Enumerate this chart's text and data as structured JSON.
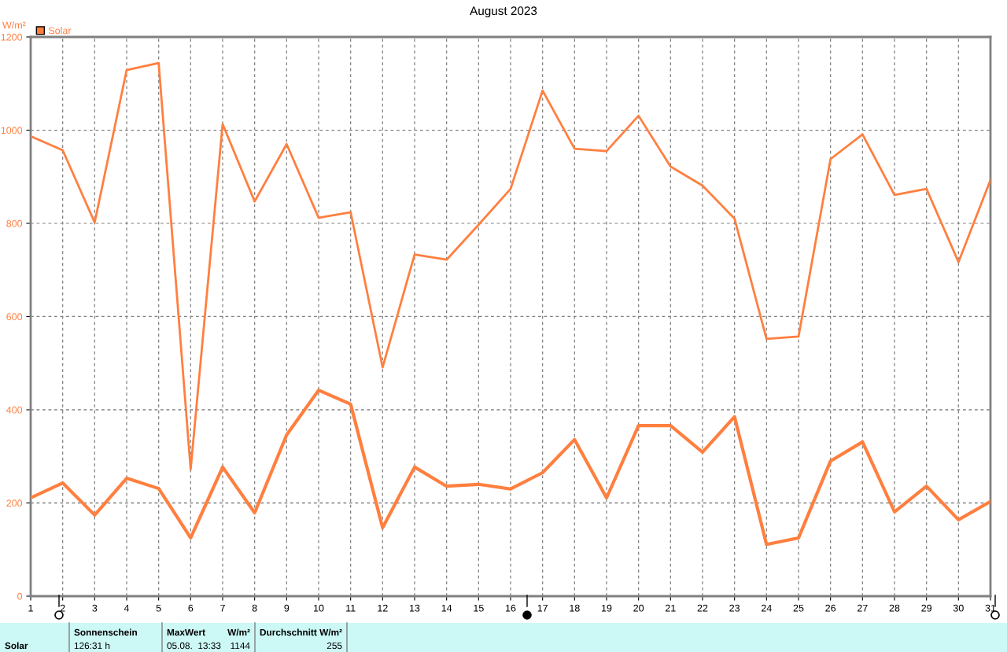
{
  "chart_data": {
    "type": "line",
    "title": "August 2023",
    "ylabel": "W/m²",
    "x": [
      1,
      2,
      3,
      4,
      5,
      6,
      7,
      8,
      9,
      10,
      11,
      12,
      13,
      14,
      15,
      16,
      17,
      18,
      19,
      20,
      21,
      22,
      23,
      24,
      25,
      26,
      27,
      28,
      29,
      30,
      31
    ],
    "series": [
      {
        "name": "Solar",
        "color": "#ff7f3f",
        "values": [
          987,
          957,
          802,
          1129,
          1144,
          272,
          1013,
          847,
          970,
          812,
          824,
          491,
          733,
          722,
          797,
          874,
          1085,
          960,
          955,
          1031,
          922,
          881,
          810,
          552,
          557,
          938,
          991,
          861,
          874,
          717,
          893
        ]
      },
      {
        "color": "#ff7f3f",
        "values": [
          211,
          243,
          174,
          253,
          231,
          125,
          277,
          179,
          346,
          442,
          412,
          147,
          277,
          236,
          240,
          230,
          265,
          336,
          211,
          366,
          366,
          309,
          385,
          111,
          125,
          290,
          331,
          181,
          236,
          164,
          203
        ]
      }
    ],
    "xlim": [
      1,
      31
    ],
    "xticks": [
      1,
      2,
      3,
      4,
      5,
      6,
      7,
      8,
      9,
      10,
      11,
      12,
      13,
      14,
      15,
      16,
      17,
      18,
      19,
      20,
      21,
      22,
      23,
      24,
      25,
      26,
      27,
      28,
      29,
      30,
      31
    ],
    "ylim": [
      0,
      1200
    ],
    "yticks": [
      0,
      200,
      400,
      600,
      800,
      1000,
      1200
    ],
    "grid": true,
    "legend": "top left",
    "marker": "none",
    "line_style": "solid",
    "annotations": [
      "Solar",
      "Sonnenschein",
      "126:31 h",
      "MaxWert",
      "W/m²",
      "05.08.  13:33",
      "1144",
      "Durchschnitt",
      "W/m²",
      "255"
    ]
  }
}
